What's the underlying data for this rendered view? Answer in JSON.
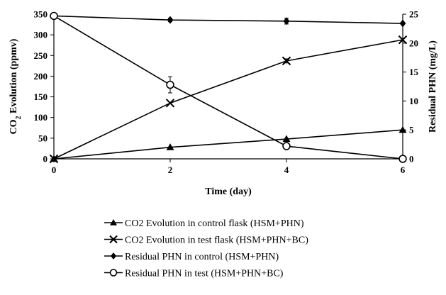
{
  "chart_data": {
    "type": "line",
    "title": "",
    "xlabel": "Time (day)",
    "ylabel_left": "CO2 Evolution (ppmv)",
    "ylabel_right": "Residual PHN (mg/L)",
    "x_ticks": [
      "0",
      "2",
      "4",
      "6"
    ],
    "y_left_ticks": [
      "0",
      "50",
      "100",
      "150",
      "200",
      "250",
      "300",
      "350"
    ],
    "y_right_ticks": [
      "0",
      "5",
      "10",
      "15",
      "20",
      "25"
    ],
    "xlim": [
      0,
      6
    ],
    "ylim_left": [
      0,
      350
    ],
    "ylim_right": [
      0,
      25
    ],
    "legend_position": "bottom",
    "series": [
      {
        "name": "CO2 Evolution in control flask (HSM+PHN)",
        "axis": "left",
        "marker": "triangle",
        "x": [
          0,
          2,
          4,
          6
        ],
        "y": [
          0,
          28,
          48,
          70
        ],
        "error": [
          0,
          0,
          0,
          0
        ]
      },
      {
        "name": "CO2 Evolution in test flask (HSM+PHN+BC)",
        "axis": "left",
        "marker": "cross",
        "x": [
          0,
          2,
          4,
          6
        ],
        "y": [
          0,
          135,
          237,
          288
        ],
        "error": [
          0,
          0,
          5,
          0
        ]
      },
      {
        "name": "Residual PHN in control (HSM+PHN)",
        "axis": "right",
        "marker": "diamond",
        "x": [
          0,
          2,
          4,
          6
        ],
        "y": [
          24.7,
          24.0,
          23.8,
          23.4
        ],
        "error": [
          0,
          0.3,
          0.5,
          0
        ]
      },
      {
        "name": "Residual PHN in test (HSM+PHN+BC)",
        "axis": "right",
        "marker": "circle-open",
        "x": [
          0,
          2,
          4,
          6
        ],
        "y": [
          24.7,
          12.8,
          2.2,
          0
        ],
        "error": [
          0,
          1.4,
          0,
          0
        ]
      }
    ]
  }
}
